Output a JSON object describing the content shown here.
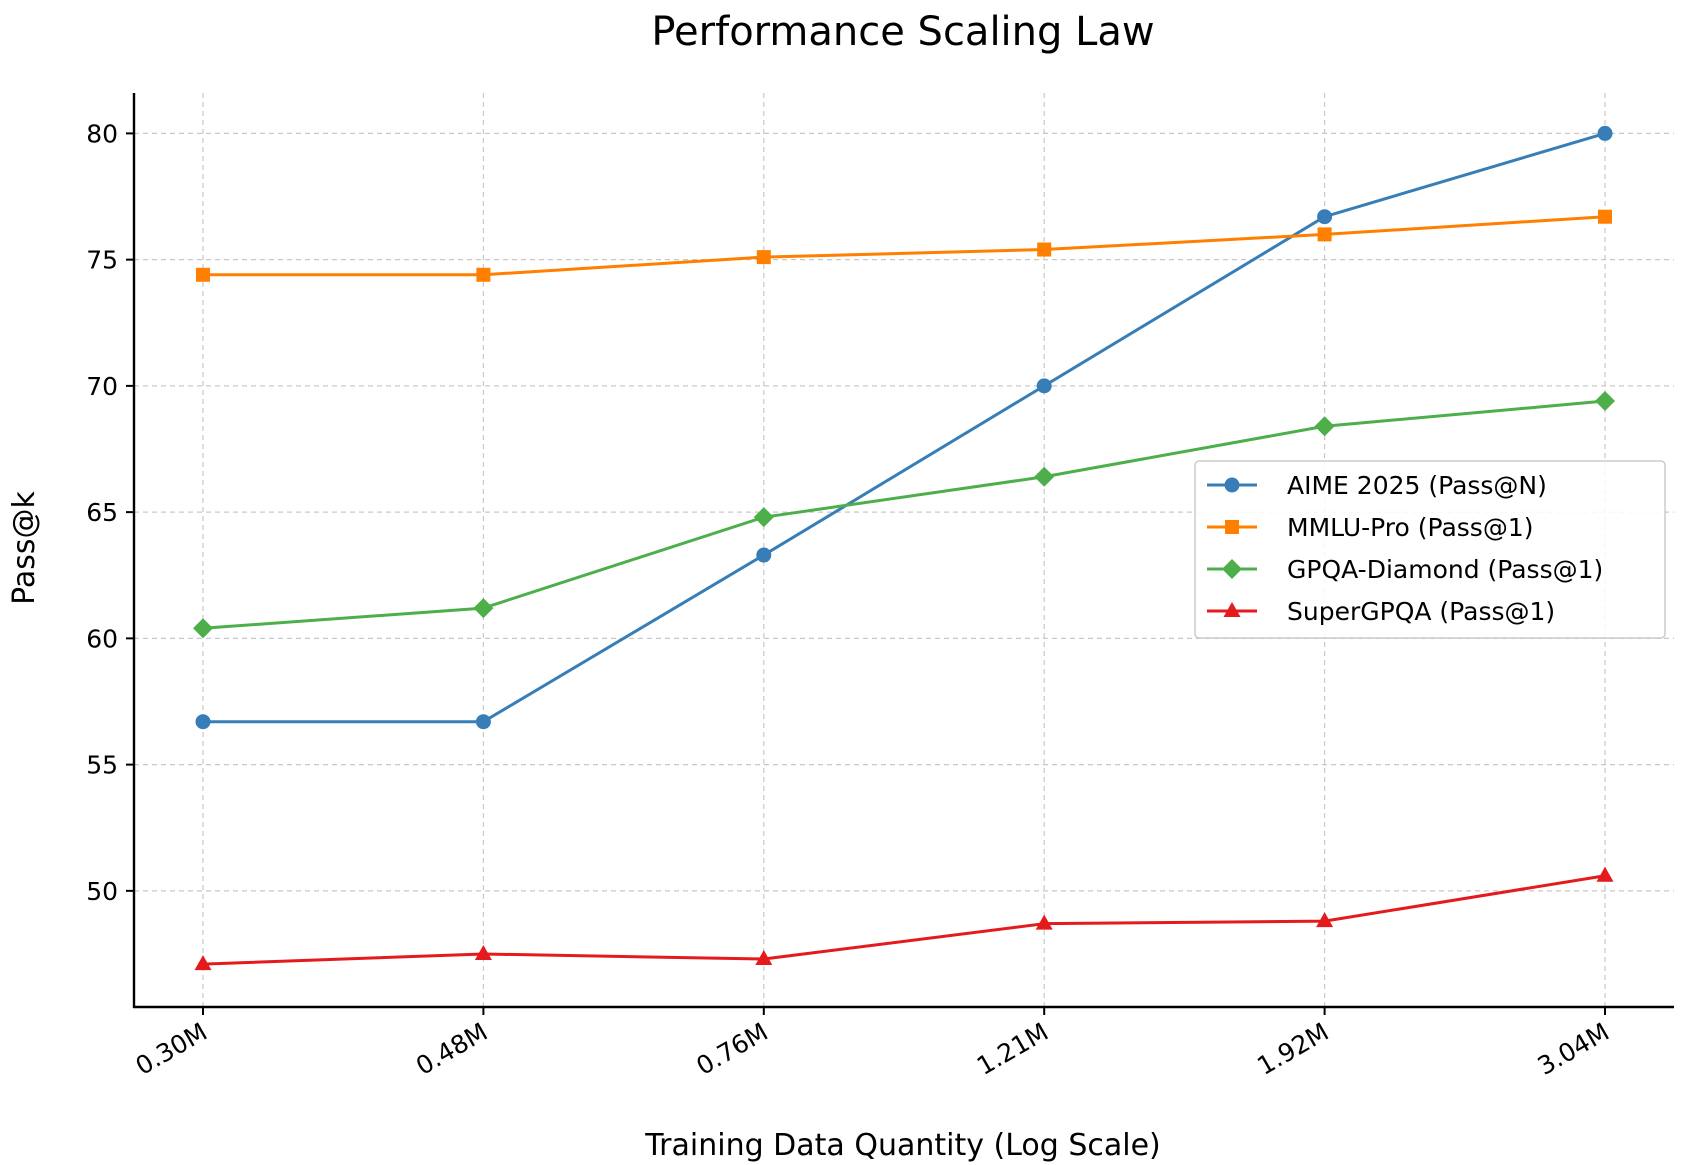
{
  "chart_data": {
    "type": "line",
    "title": "Performance Scaling Law",
    "xlabel": "Training Data Quantity (Log Scale)",
    "ylabel": "Pass@k",
    "x_scale": "log",
    "categories": [
      "0.30M",
      "0.48M",
      "0.76M",
      "1.21M",
      "1.92M",
      "3.04M"
    ],
    "y_ticks": [
      50,
      55,
      60,
      65,
      70,
      75,
      80
    ],
    "ylim": [
      45.4,
      81.6
    ],
    "grid": true,
    "legend_position": "center-right",
    "series": [
      {
        "name": "AIME 2025 (Pass@N)",
        "color": "#377eb8",
        "marker": "circle",
        "values": [
          56.7,
          56.7,
          63.3,
          70.0,
          76.7,
          80.0
        ]
      },
      {
        "name": "MMLU-Pro (Pass@1)",
        "color": "#ff7f00",
        "marker": "square",
        "values": [
          74.4,
          74.4,
          75.1,
          75.4,
          76.0,
          76.7
        ]
      },
      {
        "name": "GPQA-Diamond (Pass@1)",
        "color": "#4daf4a",
        "marker": "diamond",
        "values": [
          60.4,
          61.2,
          64.8,
          66.4,
          68.4,
          69.4
        ]
      },
      {
        "name": "SuperGPQA (Pass@1)",
        "color": "#e41a1c",
        "marker": "triangle",
        "values": [
          47.1,
          47.5,
          47.3,
          48.7,
          48.8,
          50.6
        ]
      }
    ]
  }
}
